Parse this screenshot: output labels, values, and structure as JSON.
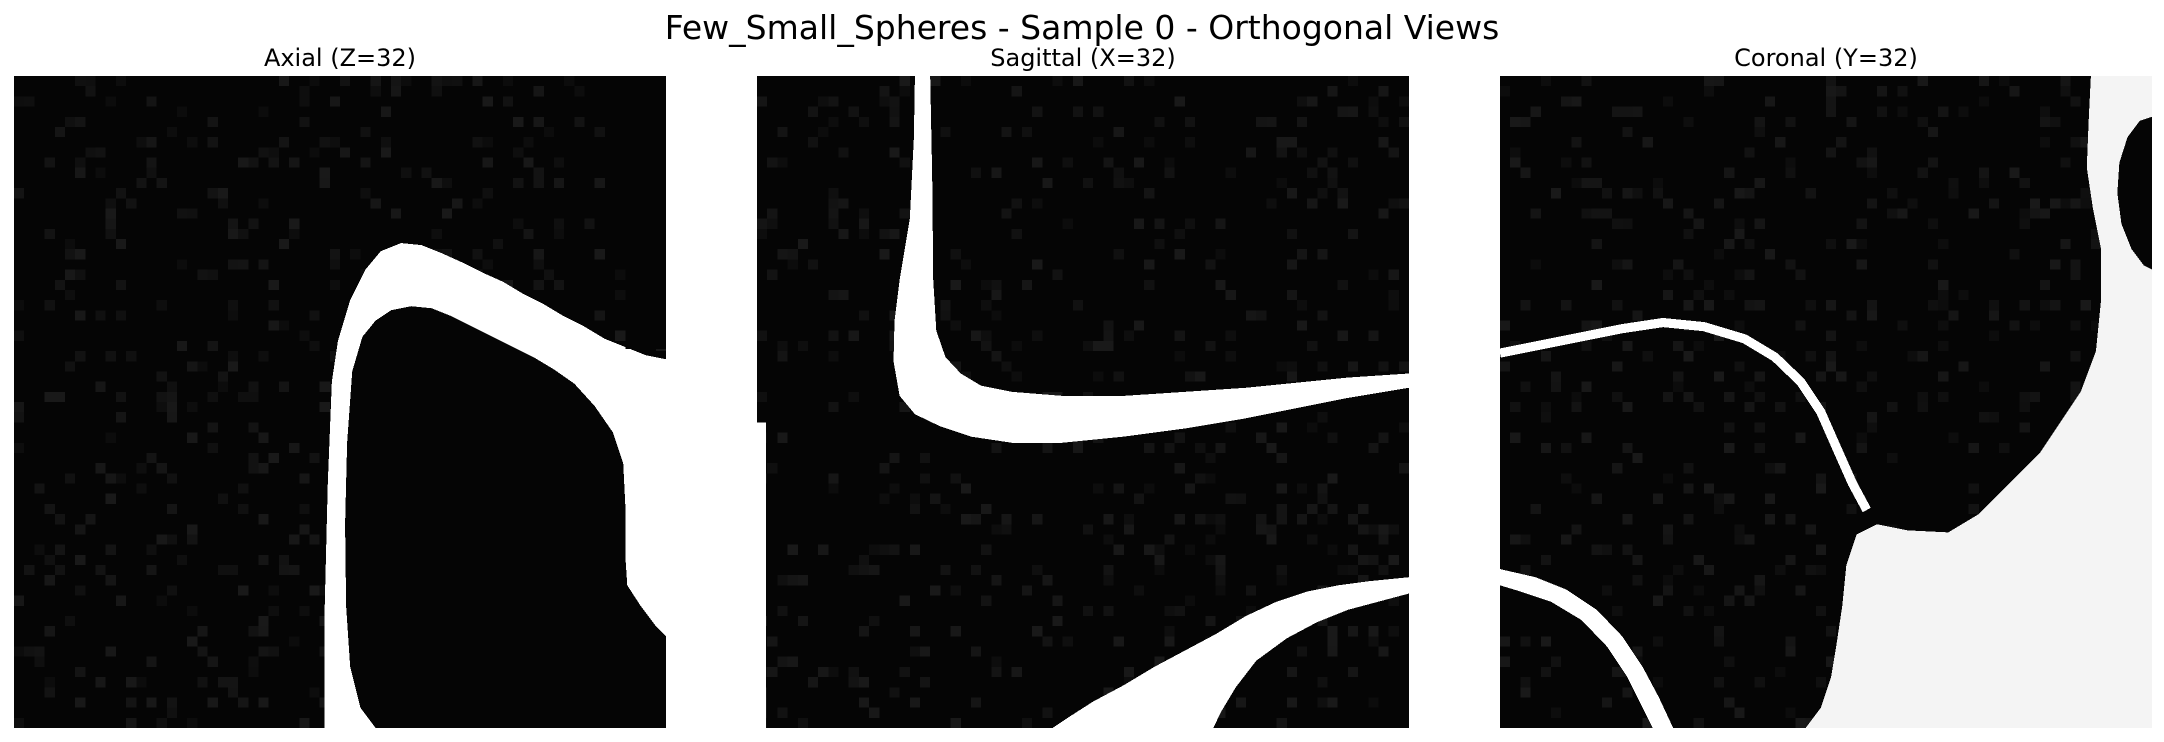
{
  "figure": {
    "title": "Few_Small_Spheres - Sample 0 - Orthogonal Views"
  },
  "panels": [
    {
      "id": "axial",
      "title": "Axial (Z=32)"
    },
    {
      "id": "sagittal",
      "title": "Sagittal (X=32)"
    },
    {
      "id": "coronal",
      "title": "Coronal (Y=32)"
    }
  ],
  "colors": {
    "background": "#050505",
    "foreground": "#ffffff",
    "noise_dark": "#0c0c0c",
    "noise_light": "#ececec"
  }
}
